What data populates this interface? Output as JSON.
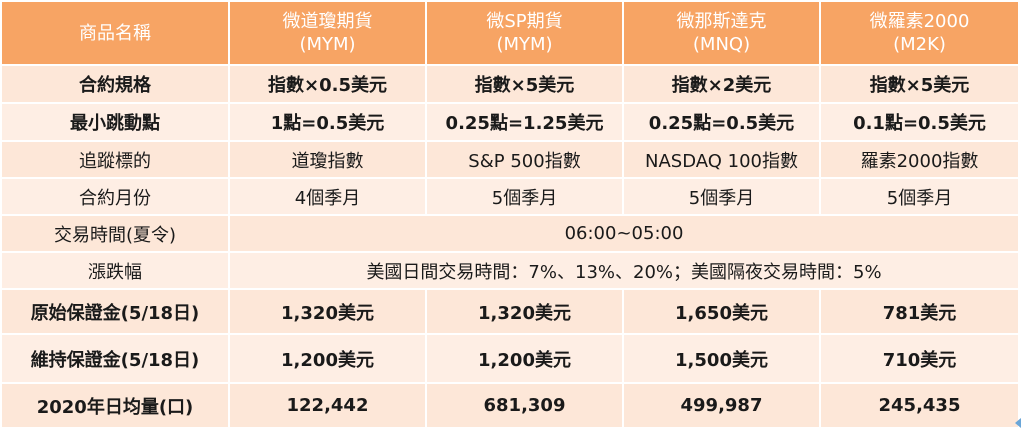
{
  "table": {
    "headers": [
      {
        "line1": "商品名稱",
        "line2": ""
      },
      {
        "line1": "微道瓊期貨",
        "line2": "(MYM)"
      },
      {
        "line1": "微SP期貨",
        "line2": "(MYM)"
      },
      {
        "line1": "微那斯達克",
        "line2": "(MNQ)"
      },
      {
        "line1": "微羅素2000",
        "line2": "(M2K)"
      }
    ],
    "rows": [
      {
        "label": "合約規格",
        "cells": [
          "指數×0.5美元",
          "指數×5美元",
          "指數×2美元",
          "指數×5美元"
        ]
      },
      {
        "label": "最小跳動點",
        "cells": [
          "1點=0.5美元",
          "0.25點=1.25美元",
          "0.25點=0.5美元",
          "0.1點=0.5美元"
        ]
      },
      {
        "label": "追蹤標的",
        "cells": [
          "道瓊指數",
          "S&P 500指數",
          "NASDAQ 100指數",
          "羅素2000指數"
        ]
      },
      {
        "label": "合約月份",
        "cells": [
          "4個季月",
          "5個季月",
          "5個季月",
          "5個季月"
        ]
      },
      {
        "label": "交易時間(夏令)",
        "merged": "06:00~05:00"
      },
      {
        "label": "漲跌幅",
        "merged": "美國日間交易時間：7%、13%、20%；美國隔夜交易時間：5%"
      },
      {
        "label": "原始保證金(5/18日)",
        "cells": [
          "1,320美元",
          "1,320美元",
          "1,650美元",
          "781美元"
        ]
      },
      {
        "label": "維持保證金(5/18日)",
        "cells": [
          "1,200美元",
          "1,200美元",
          "1,500美元",
          "710美元"
        ]
      },
      {
        "label": "2020年日均量(口)",
        "cells": [
          "122,442",
          "681,309",
          "499,987",
          "245,435"
        ]
      }
    ]
  },
  "colors": {
    "header_bg": "#f7a464",
    "row_light": "#fde7d8",
    "row_pale": "#feeee4"
  }
}
